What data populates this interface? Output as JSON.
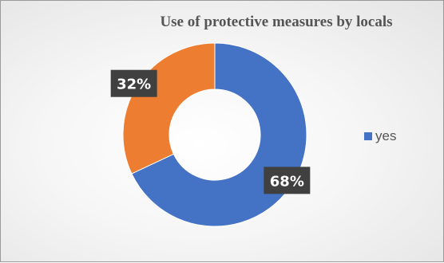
{
  "chart_data": {
    "type": "pie",
    "title": "Use of protective measures by locals",
    "categories": [
      "yes",
      ""
    ],
    "values": [
      68,
      32
    ],
    "data_labels": [
      "68%",
      "32%"
    ],
    "colors": [
      "#4472C4",
      "#ED7D31"
    ],
    "legend": {
      "position": "right",
      "entries": [
        {
          "name": "yes",
          "color": "#4472C4"
        }
      ]
    }
  }
}
